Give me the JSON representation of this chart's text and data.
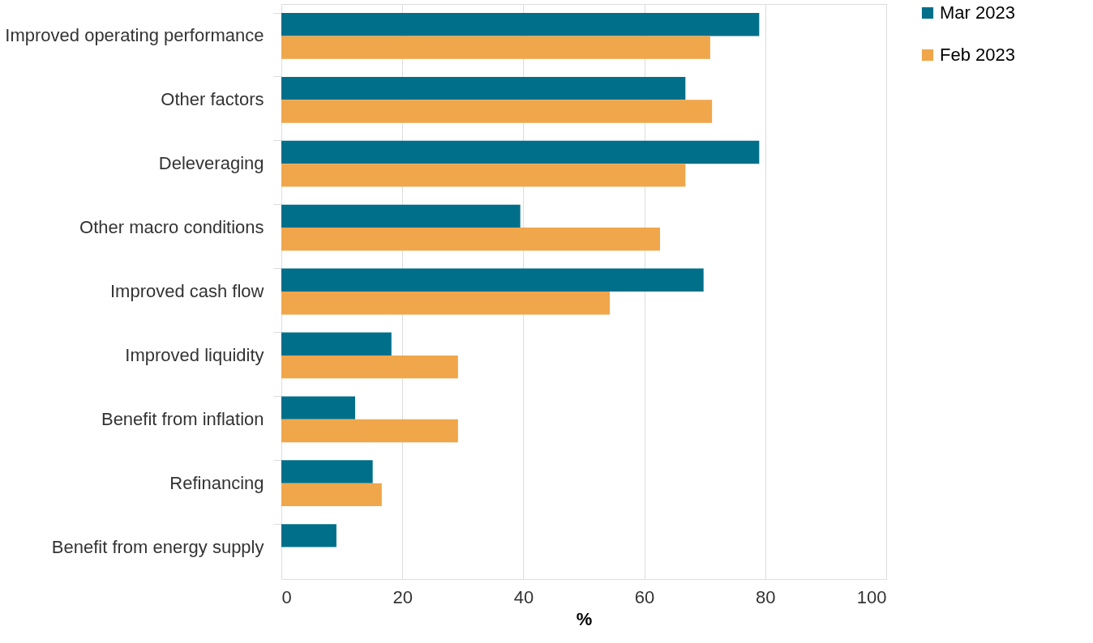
{
  "chart_data": {
    "type": "bar",
    "orientation": "horizontal",
    "xlabel": "%",
    "categories": [
      "Improved operating performance",
      "Other factors",
      "Deleveraging",
      "Other macro conditions",
      "Improved cash flow",
      "Improved liquidity",
      "Benefit from inflation",
      "Refinancing",
      "Benefit from energy supply"
    ],
    "series": [
      {
        "name": "Mar 2023",
        "color": "#006f8a",
        "values": [
          79.0,
          66.8,
          79.0,
          39.5,
          69.8,
          18.2,
          12.2,
          15.1,
          9.1
        ]
      },
      {
        "name": "Feb 2023",
        "color": "#f0a64a",
        "values": [
          70.9,
          71.2,
          66.8,
          62.6,
          54.3,
          29.2,
          29.2,
          16.6,
          null
        ]
      }
    ],
    "xlim": [
      0,
      100
    ],
    "xticks": [
      0,
      20,
      40,
      60,
      80,
      100
    ],
    "grid": "x",
    "legend": "top right"
  }
}
